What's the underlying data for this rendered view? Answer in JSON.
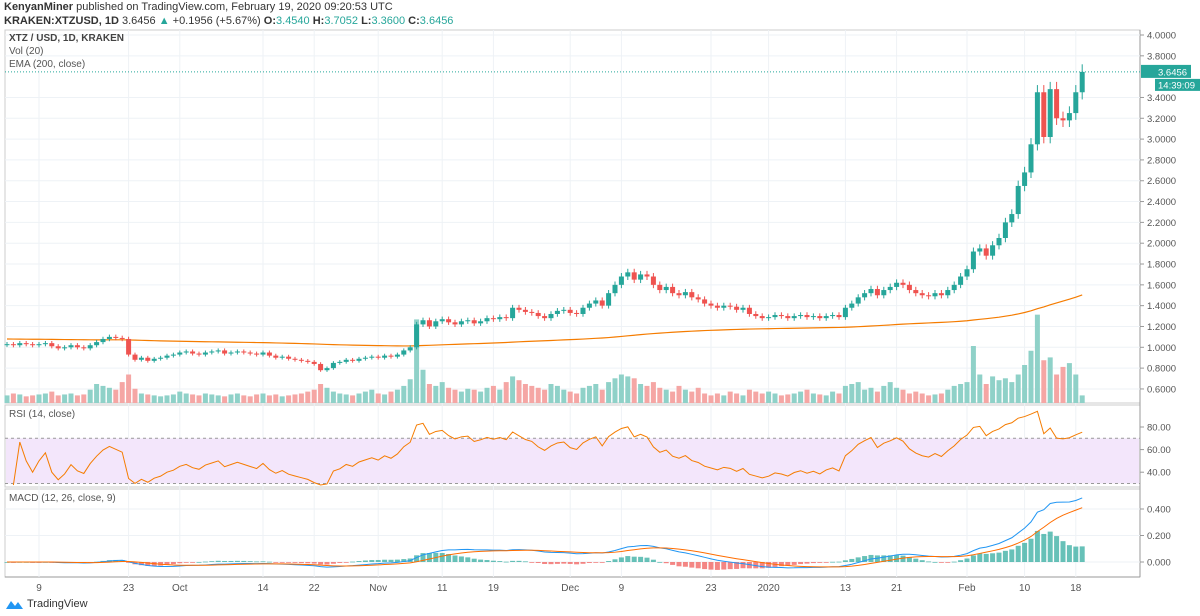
{
  "header": {
    "author": "KenyanMiner",
    "published": "published on TradingView.com, February 19, 2020 09:20:53 UTC",
    "symbol": "KRAKEN:XTZUSD, 1D",
    "last": "3.6456",
    "change": "+0.1956 (+5.67%)",
    "o_label": "O:",
    "o": "3.4540",
    "h_label": "H:",
    "h": "3.7052",
    "l_label": "L:",
    "l": "3.3600",
    "c_label": "C:",
    "c": "3.6456"
  },
  "legend": {
    "title": "XTZ / USD, 1D, KRAKEN",
    "vol": "Vol (20)",
    "ema": "EMA (200, close)",
    "rsi": "RSI (14, close)",
    "macd": "MACD (12, 26, close, 9)"
  },
  "price_tag": {
    "price": "3.6456",
    "countdown": "14:39:09"
  },
  "brand": "TradingView",
  "colors": {
    "up": "#26a69a",
    "down": "#ef5350",
    "vol_up": "#8fd1c8",
    "vol_down": "#f5a6a4",
    "ema": "#f57c00",
    "rsi": "#f57c00",
    "macd": "#2196f3",
    "signal": "#ff6d00",
    "rsi_band": "#f3e6fb"
  },
  "chart_data": {
    "type": "candlestick",
    "title": "XTZ / USD, 1D, KRAKEN",
    "start_date": "2019-09-04",
    "end_date": "2020-02-19",
    "ylim": [
      0.5,
      4.05
    ],
    "y_ticks": [
      "4.0000",
      "3.8000",
      "3.4000",
      "3.2000",
      "3.0000",
      "2.8000",
      "2.6000",
      "2.4000",
      "2.2000",
      "2.0000",
      "1.8000",
      "1.6000",
      "1.4000",
      "1.2000",
      "1.0000",
      "0.8000",
      "0.6000"
    ],
    "rsi_ticks": [
      "80.00",
      "60.00",
      "40.00"
    ],
    "macd_ticks": [
      "0.400",
      "0.200",
      "0.000"
    ],
    "x_ticks": [
      {
        "label": "9",
        "index": 5
      },
      {
        "label": "23",
        "index": 19
      },
      {
        "label": "Oct",
        "index": 27
      },
      {
        "label": "14",
        "index": 40
      },
      {
        "label": "22",
        "index": 48
      },
      {
        "label": "Nov",
        "index": 58
      },
      {
        "label": "11",
        "index": 68
      },
      {
        "label": "19",
        "index": 76
      },
      {
        "label": "Dec",
        "index": 88
      },
      {
        "label": "9",
        "index": 96
      },
      {
        "label": "23",
        "index": 110
      },
      {
        "label": "2020",
        "index": 119
      },
      {
        "label": "13",
        "index": 131
      },
      {
        "label": "21",
        "index": 139
      },
      {
        "label": "Feb",
        "index": 150
      },
      {
        "label": "10",
        "index": 159
      },
      {
        "label": "18",
        "index": 167
      }
    ],
    "close": [
      1.03,
      1.02,
      1.04,
      1.03,
      1.02,
      1.03,
      1.04,
      1.01,
      0.99,
      1.0,
      1.02,
      1.0,
      0.99,
      1.02,
      1.05,
      1.08,
      1.1,
      1.09,
      1.08,
      0.93,
      0.88,
      0.9,
      0.87,
      0.89,
      0.9,
      0.92,
      0.93,
      0.95,
      0.96,
      0.94,
      0.93,
      0.95,
      0.96,
      0.97,
      0.94,
      0.95,
      0.96,
      0.95,
      0.94,
      0.93,
      0.95,
      0.92,
      0.9,
      0.91,
      0.89,
      0.88,
      0.87,
      0.86,
      0.84,
      0.78,
      0.8,
      0.85,
      0.86,
      0.88,
      0.87,
      0.89,
      0.9,
      0.91,
      0.9,
      0.92,
      0.91,
      0.93,
      0.97,
      1.0,
      1.22,
      1.26,
      1.2,
      1.25,
      1.27,
      1.24,
      1.22,
      1.25,
      1.26,
      1.23,
      1.25,
      1.28,
      1.27,
      1.29,
      1.28,
      1.38,
      1.36,
      1.34,
      1.33,
      1.3,
      1.28,
      1.32,
      1.35,
      1.36,
      1.33,
      1.32,
      1.38,
      1.42,
      1.45,
      1.4,
      1.52,
      1.6,
      1.68,
      1.72,
      1.65,
      1.7,
      1.68,
      1.6,
      1.55,
      1.58,
      1.52,
      1.5,
      1.53,
      1.48,
      1.46,
      1.42,
      1.4,
      1.38,
      1.4,
      1.39,
      1.36,
      1.38,
      1.32,
      1.3,
      1.28,
      1.29,
      1.31,
      1.3,
      1.28,
      1.3,
      1.31,
      1.29,
      1.3,
      1.28,
      1.3,
      1.31,
      1.29,
      1.38,
      1.42,
      1.48,
      1.52,
      1.56,
      1.5,
      1.55,
      1.58,
      1.62,
      1.6,
      1.55,
      1.52,
      1.5,
      1.49,
      1.52,
      1.5,
      1.55,
      1.6,
      1.68,
      1.75,
      1.92,
      1.95,
      1.88,
      1.98,
      2.05,
      2.2,
      2.28,
      2.55,
      2.68,
      2.95,
      3.45,
      3.02,
      3.48,
      3.2,
      3.18,
      3.25,
      3.45,
      3.6456
    ],
    "volume_relative": [
      8,
      10,
      9,
      7,
      8,
      9,
      10,
      12,
      8,
      9,
      10,
      8,
      9,
      14,
      20,
      18,
      16,
      14,
      22,
      30,
      15,
      10,
      9,
      8,
      7,
      8,
      9,
      12,
      10,
      9,
      8,
      10,
      9,
      8,
      7,
      9,
      10,
      8,
      7,
      9,
      10,
      8,
      9,
      7,
      8,
      9,
      10,
      12,
      14,
      20,
      16,
      12,
      10,
      9,
      8,
      10,
      12,
      14,
      10,
      9,
      12,
      14,
      18,
      25,
      88,
      35,
      20,
      18,
      22,
      16,
      14,
      12,
      15,
      14,
      12,
      16,
      18,
      14,
      22,
      28,
      24,
      20,
      18,
      16,
      14,
      20,
      18,
      14,
      12,
      10,
      16,
      18,
      20,
      14,
      22,
      26,
      30,
      28,
      26,
      20,
      18,
      22,
      16,
      14,
      12,
      18,
      14,
      12,
      16,
      10,
      8,
      10,
      8,
      12,
      10,
      8,
      14,
      12,
      10,
      12,
      10,
      8,
      9,
      10,
      12,
      14,
      10,
      9,
      8,
      12,
      10,
      18,
      20,
      22,
      14,
      16,
      12,
      18,
      22,
      16,
      14,
      10,
      12,
      10,
      8,
      9,
      10,
      14,
      18,
      20,
      22,
      60,
      30,
      20,
      28,
      24,
      26,
      22,
      30,
      40,
      55,
      93,
      45,
      48,
      30,
      38,
      42,
      30,
      8
    ],
    "ema_seed": 1.08
  }
}
